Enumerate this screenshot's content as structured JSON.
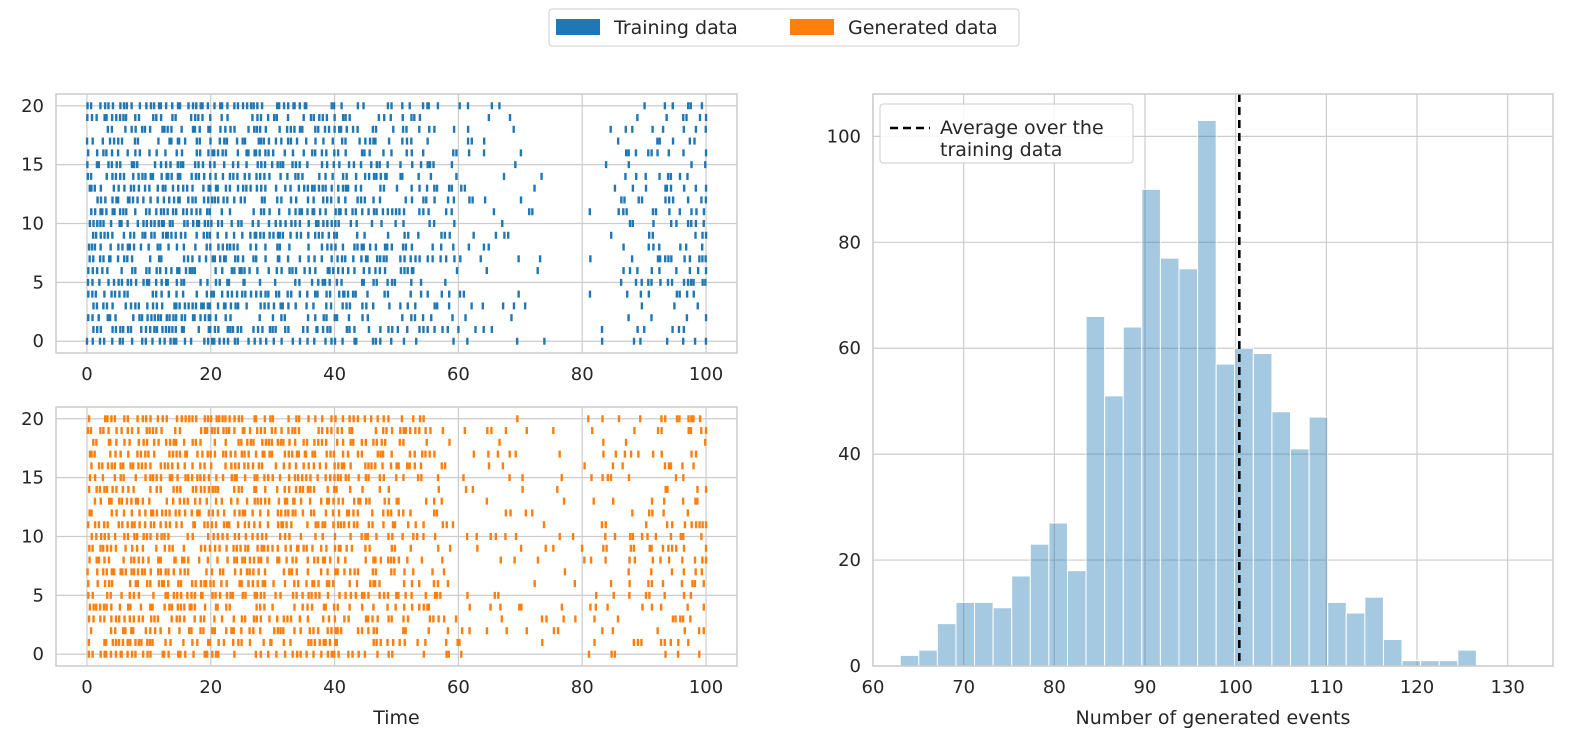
{
  "legend": {
    "items": [
      {
        "label": "Training data",
        "color": "#1f77b4"
      },
      {
        "label": "Generated data",
        "color": "#ff7f0e"
      }
    ]
  },
  "chart_data": [
    {
      "type": "scatter",
      "subtype": "event-raster",
      "name": "training-raster",
      "color": "#1f77b4",
      "xlim": [
        -5,
        105
      ],
      "ylim": [
        -1,
        21
      ],
      "xticks": [
        0,
        20,
        40,
        60,
        80,
        100
      ],
      "yticks": [
        0,
        5,
        10,
        15,
        20
      ],
      "xlabel": "",
      "ylabel": "",
      "grid": true,
      "rows": 21,
      "density_by_time": [
        [
          0,
          0.85
        ],
        [
          40,
          0.75
        ],
        [
          55,
          0.45
        ],
        [
          60,
          0.3
        ],
        [
          70,
          0.08
        ],
        [
          75,
          0.0
        ],
        [
          80,
          0.0
        ],
        [
          83,
          0.1
        ],
        [
          90,
          0.35
        ],
        [
          100,
          0.45
        ]
      ]
    },
    {
      "type": "scatter",
      "subtype": "event-raster",
      "name": "generated-raster",
      "color": "#ff7f0e",
      "xlim": [
        -5,
        105
      ],
      "ylim": [
        -1,
        21
      ],
      "xticks": [
        0,
        20,
        40,
        60,
        80,
        100
      ],
      "yticks": [
        0,
        5,
        10,
        15,
        20
      ],
      "xlabel": "Time",
      "ylabel": "",
      "grid": true,
      "rows": 21,
      "density_by_time": [
        [
          0,
          0.85
        ],
        [
          40,
          0.75
        ],
        [
          55,
          0.45
        ],
        [
          60,
          0.2
        ],
        [
          75,
          0.12
        ],
        [
          80,
          0.15
        ],
        [
          90,
          0.35
        ],
        [
          100,
          0.45
        ]
      ]
    },
    {
      "type": "bar",
      "subtype": "histogram",
      "name": "event-count-histogram",
      "color": "#1f77b4",
      "opacity": 0.4,
      "bin_start": 63,
      "bin_width": 2.05,
      "values": [
        2,
        3,
        8,
        12,
        12,
        11,
        17,
        23,
        27,
        18,
        66,
        51,
        64,
        90,
        77,
        75,
        103,
        57,
        60,
        59,
        48,
        41,
        47,
        12,
        10,
        13,
        5,
        1,
        1,
        1,
        3
      ],
      "xlim": [
        60,
        135
      ],
      "ylim": [
        0,
        108
      ],
      "xticks": [
        60,
        70,
        80,
        90,
        100,
        110,
        120,
        130
      ],
      "yticks": [
        0,
        20,
        40,
        60,
        80,
        100
      ],
      "xlabel": "Number of generated events",
      "ylabel": "",
      "grid": true,
      "vline": {
        "x": 100.4,
        "style": "dashed",
        "color": "#000000",
        "label": [
          "Average over the",
          "training data"
        ]
      },
      "legend_position": "top-left"
    }
  ]
}
